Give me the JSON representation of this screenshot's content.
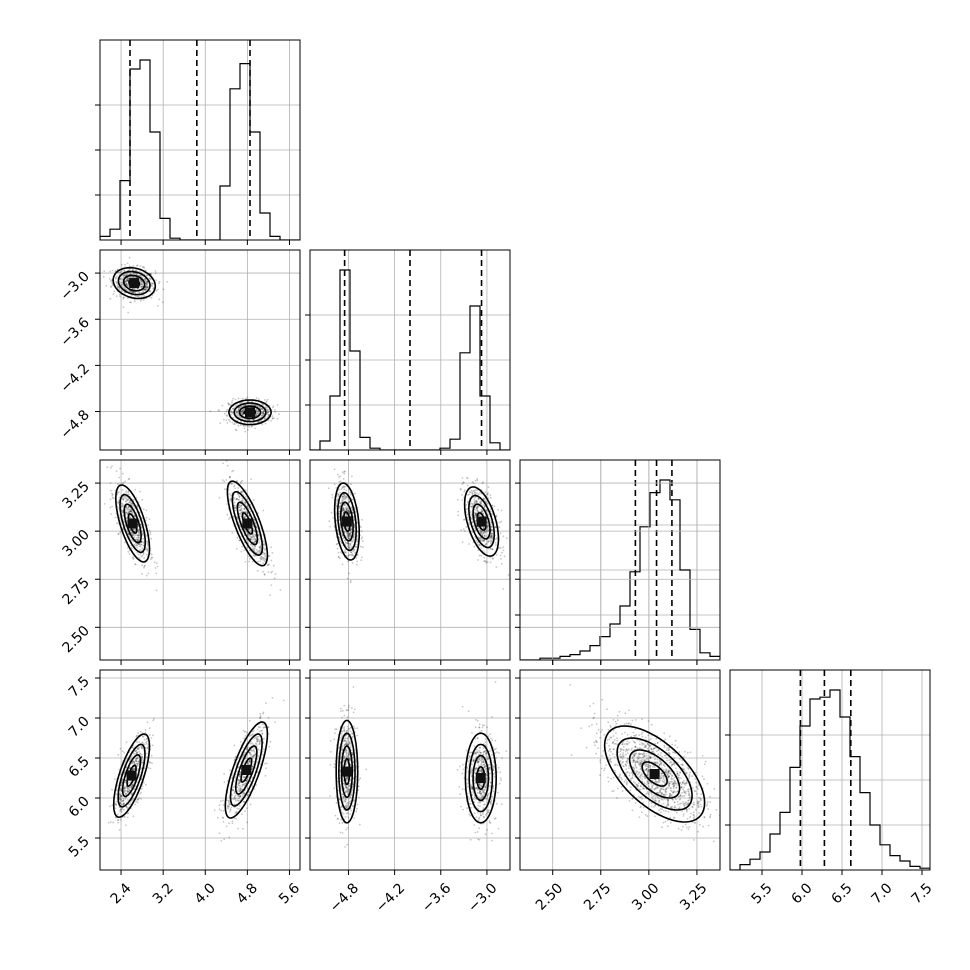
{
  "chart_data": {
    "type": "corner",
    "parameters": [
      {
        "key": "p0",
        "range": [
          2.0,
          5.8
        ],
        "ticks": [
          "2.4",
          "3.2",
          "4.0",
          "4.8",
          "5.6"
        ],
        "tick_values": [
          2.4,
          3.2,
          4.0,
          4.8,
          5.6
        ],
        "quantiles": [
          2.57,
          3.84,
          4.85
        ],
        "hist_edges": [
          2.0,
          2.19,
          2.38,
          2.57,
          2.76,
          2.95,
          3.14,
          3.33,
          3.52,
          3.71,
          3.9,
          4.09,
          4.28,
          4.47,
          4.66,
          4.85,
          5.04,
          5.23,
          5.42,
          5.61,
          5.8
        ],
        "hist_counts": [
          0.02,
          0.06,
          0.33,
          0.95,
          1.0,
          0.6,
          0.12,
          0.01,
          0,
          0,
          0,
          0,
          0.3,
          0.84,
          0.98,
          0.6,
          0.15,
          0.02,
          0,
          0
        ]
      },
      {
        "key": "p1",
        "range": [
          -5.3,
          -2.7
        ],
        "ticks": [
          "−4.8",
          "−4.2",
          "−3.6",
          "−3.0"
        ],
        "tick_values": [
          -4.8,
          -4.2,
          -3.6,
          -3.0
        ],
        "quantiles": [
          -4.85,
          -4.0,
          -3.07
        ],
        "hist_edges": [
          -5.3,
          -5.17,
          -5.04,
          -4.91,
          -4.78,
          -4.65,
          -4.52,
          -4.39,
          -4.26,
          -4.13,
          -4.0,
          -3.87,
          -3.74,
          -3.61,
          -3.48,
          -3.35,
          -3.22,
          -3.09,
          -2.96,
          -2.83,
          -2.7
        ],
        "hist_counts": [
          0,
          0.05,
          0.3,
          1.0,
          0.55,
          0.07,
          0.01,
          0,
          0,
          0,
          0,
          0,
          0,
          0.01,
          0.06,
          0.54,
          0.8,
          0.3,
          0.04,
          0
        ]
      },
      {
        "key": "p2",
        "range": [
          2.33,
          3.37
        ],
        "ticks": [
          "2.50",
          "2.75",
          "3.00",
          "3.25"
        ],
        "tick_values": [
          2.5,
          2.75,
          3.0,
          3.25
        ],
        "quantiles": [
          2.93,
          3.04,
          3.12
        ],
        "hist_edges": [
          2.33,
          2.382,
          2.434,
          2.486,
          2.538,
          2.59,
          2.642,
          2.694,
          2.746,
          2.798,
          2.85,
          2.902,
          2.954,
          3.006,
          3.058,
          3.11,
          3.162,
          3.214,
          3.266,
          3.318,
          3.37
        ],
        "hist_counts": [
          0,
          0,
          0.01,
          0.01,
          0.02,
          0.03,
          0.05,
          0.08,
          0.13,
          0.2,
          0.3,
          0.49,
          0.74,
          0.93,
          1.0,
          0.89,
          0.5,
          0.17,
          0.04,
          0.02
        ]
      },
      {
        "key": "p3",
        "range": [
          5.1,
          7.6
        ],
        "ticks": [
          "5.5",
          "6.0",
          "6.5",
          "7.0",
          "7.5"
        ],
        "tick_values": [
          5.5,
          6.0,
          6.5,
          7.0,
          7.5
        ],
        "quantiles": [
          5.98,
          6.28,
          6.61
        ],
        "hist_edges": [
          5.1,
          5.225,
          5.35,
          5.475,
          5.6,
          5.725,
          5.85,
          5.975,
          6.1,
          6.225,
          6.35,
          6.475,
          6.6,
          6.725,
          6.85,
          6.975,
          7.1,
          7.225,
          7.35,
          7.475,
          7.6
        ],
        "hist_counts": [
          0.0,
          0.03,
          0.06,
          0.1,
          0.2,
          0.32,
          0.57,
          0.8,
          0.95,
          0.96,
          1.0,
          0.85,
          0.63,
          0.43,
          0.25,
          0.14,
          0.08,
          0.05,
          0.02,
          0.01
        ]
      }
    ],
    "pairs": [
      {
        "row": 1,
        "col": 0,
        "blobs": [
          {
            "center": [
              2.65,
              -3.13
            ],
            "sd": [
              0.2,
              0.1
            ],
            "rho": -0.2,
            "n": 600
          },
          {
            "center": [
              4.85,
              -4.81
            ],
            "sd": [
              0.2,
              0.08
            ],
            "rho": 0.0,
            "n": 600
          }
        ]
      },
      {
        "row": 2,
        "col": 0,
        "blobs": [
          {
            "center": [
              2.62,
              3.04
            ],
            "sd": [
              0.16,
              0.1
            ],
            "rho": -0.65,
            "n": 600
          },
          {
            "center": [
              4.8,
              3.04
            ],
            "sd": [
              0.19,
              0.11
            ],
            "rho": -0.75,
            "n": 600
          }
        ]
      },
      {
        "row": 2,
        "col": 1,
        "blobs": [
          {
            "center": [
              -4.82,
              3.05
            ],
            "sd": [
              0.08,
              0.1
            ],
            "rho": -0.3,
            "n": 600
          },
          {
            "center": [
              -3.07,
              3.05
            ],
            "sd": [
              0.11,
              0.09
            ],
            "rho": -0.5,
            "n": 600
          }
        ]
      },
      {
        "row": 2,
        "col": 2,
        "blobs": []
      },
      {
        "row": 3,
        "col": 0,
        "blobs": [
          {
            "center": [
              2.6,
              6.28
            ],
            "sd": [
              0.17,
              0.26
            ],
            "rho": 0.7,
            "n": 600
          },
          {
            "center": [
              4.78,
              6.35
            ],
            "sd": [
              0.2,
              0.3
            ],
            "rho": 0.75,
            "n": 600
          }
        ]
      },
      {
        "row": 3,
        "col": 1,
        "blobs": [
          {
            "center": [
              -4.82,
              6.33
            ],
            "sd": [
              0.07,
              0.32
            ],
            "rho": 0.0,
            "n": 600
          },
          {
            "center": [
              -3.08,
              6.25
            ],
            "sd": [
              0.1,
              0.28
            ],
            "rho": 0.0,
            "n": 600
          }
        ]
      },
      {
        "row": 3,
        "col": 2,
        "blobs": [
          {
            "center": [
              3.03,
              6.3
            ],
            "sd": [
              0.13,
              0.3
            ],
            "rho": -0.6,
            "n": 1200
          }
        ]
      }
    ],
    "grid": true,
    "x_labels": "",
    "y_labels": ""
  }
}
